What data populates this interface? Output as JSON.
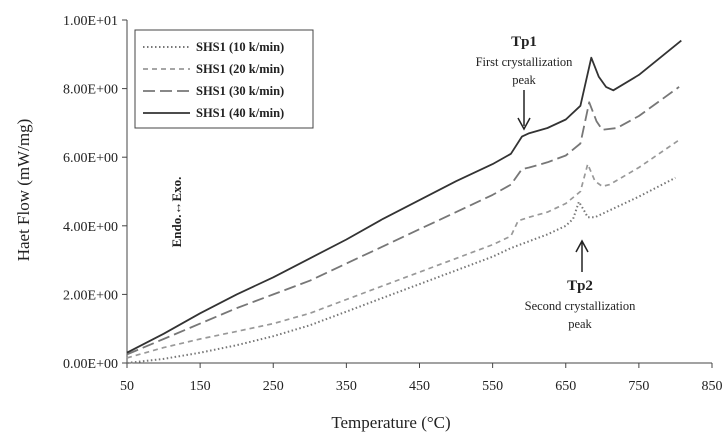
{
  "chart_data": {
    "type": "line",
    "title": "",
    "xlabel": "Temperature (°C)",
    "ylabel": "Haet Flow (mW/mg)",
    "xlim": [
      50,
      850
    ],
    "ylim": [
      0,
      10
    ],
    "x_ticks": [
      50,
      150,
      250,
      350,
      450,
      550,
      650,
      750,
      850
    ],
    "y_ticks": [
      0,
      2,
      4,
      6,
      8,
      10
    ],
    "x_tick_labels": [
      "50",
      "150",
      "250",
      "350",
      "450",
      "550",
      "650",
      "750",
      "850"
    ],
    "y_tick_labels": [
      "0.00E+00",
      "2.00E+00",
      "4.00E+00",
      "6.00E+00",
      "8.00E+00",
      "1.00E+01"
    ],
    "grid": false,
    "legend_position": "top-left",
    "series": [
      {
        "name": "SHS1 (10 k/min)",
        "style": "dotted",
        "color": "#777777",
        "points": [
          [
            50,
            0.0
          ],
          [
            100,
            0.12
          ],
          [
            150,
            0.3
          ],
          [
            200,
            0.52
          ],
          [
            250,
            0.78
          ],
          [
            300,
            1.1
          ],
          [
            350,
            1.5
          ],
          [
            400,
            1.9
          ],
          [
            450,
            2.3
          ],
          [
            500,
            2.7
          ],
          [
            550,
            3.1
          ],
          [
            575,
            3.35
          ],
          [
            600,
            3.55
          ],
          [
            625,
            3.75
          ],
          [
            650,
            4.0
          ],
          [
            660,
            4.2
          ],
          [
            668,
            4.7
          ],
          [
            675,
            4.45
          ],
          [
            680,
            4.25
          ],
          [
            690,
            4.25
          ],
          [
            700,
            4.35
          ],
          [
            750,
            4.85
          ],
          [
            800,
            5.4
          ]
        ]
      },
      {
        "name": "SHS1 (20 k/min)",
        "style": "short-dash",
        "color": "#999999",
        "points": [
          [
            50,
            0.15
          ],
          [
            100,
            0.45
          ],
          [
            150,
            0.7
          ],
          [
            200,
            0.92
          ],
          [
            250,
            1.15
          ],
          [
            300,
            1.45
          ],
          [
            350,
            1.85
          ],
          [
            400,
            2.25
          ],
          [
            450,
            2.65
          ],
          [
            500,
            3.05
          ],
          [
            550,
            3.45
          ],
          [
            575,
            3.7
          ],
          [
            585,
            4.15
          ],
          [
            600,
            4.25
          ],
          [
            625,
            4.4
          ],
          [
            650,
            4.65
          ],
          [
            670,
            5.0
          ],
          [
            680,
            5.8
          ],
          [
            690,
            5.3
          ],
          [
            700,
            5.15
          ],
          [
            710,
            5.2
          ],
          [
            750,
            5.7
          ],
          [
            805,
            6.5
          ]
        ]
      },
      {
        "name": "SHS1 (30 k/min)",
        "style": "long-dash",
        "color": "#777777",
        "points": [
          [
            50,
            0.25
          ],
          [
            100,
            0.7
          ],
          [
            150,
            1.15
          ],
          [
            200,
            1.6
          ],
          [
            250,
            2.0
          ],
          [
            300,
            2.4
          ],
          [
            350,
            2.9
          ],
          [
            400,
            3.4
          ],
          [
            450,
            3.9
          ],
          [
            500,
            4.4
          ],
          [
            550,
            4.9
          ],
          [
            575,
            5.2
          ],
          [
            590,
            5.65
          ],
          [
            600,
            5.7
          ],
          [
            625,
            5.85
          ],
          [
            650,
            6.05
          ],
          [
            670,
            6.4
          ],
          [
            682,
            7.6
          ],
          [
            692,
            7.05
          ],
          [
            700,
            6.8
          ],
          [
            720,
            6.85
          ],
          [
            750,
            7.2
          ],
          [
            805,
            8.05
          ]
        ]
      },
      {
        "name": "SHS1 (40 k/min)",
        "style": "solid",
        "color": "#333333",
        "points": [
          [
            50,
            0.3
          ],
          [
            100,
            0.85
          ],
          [
            150,
            1.45
          ],
          [
            200,
            2.0
          ],
          [
            250,
            2.5
          ],
          [
            300,
            3.05
          ],
          [
            350,
            3.6
          ],
          [
            400,
            4.2
          ],
          [
            450,
            4.75
          ],
          [
            500,
            5.3
          ],
          [
            550,
            5.8
          ],
          [
            575,
            6.1
          ],
          [
            590,
            6.6
          ],
          [
            600,
            6.7
          ],
          [
            625,
            6.85
          ],
          [
            650,
            7.1
          ],
          [
            670,
            7.5
          ],
          [
            685,
            8.9
          ],
          [
            695,
            8.35
          ],
          [
            705,
            8.05
          ],
          [
            715,
            7.95
          ],
          [
            750,
            8.4
          ],
          [
            808,
            9.4
          ]
        ]
      }
    ],
    "annotations": [
      {
        "title": "Tp1",
        "text": "First crystallization",
        "text2": "peak",
        "x": 590,
        "y": 6.75,
        "direction": "down"
      },
      {
        "title": "Tp2",
        "text": "Second crystallization",
        "text2": "peak",
        "x": 668,
        "y": 4.75,
        "direction": "up"
      }
    ],
    "side_label": "Endo.↔Exo."
  }
}
